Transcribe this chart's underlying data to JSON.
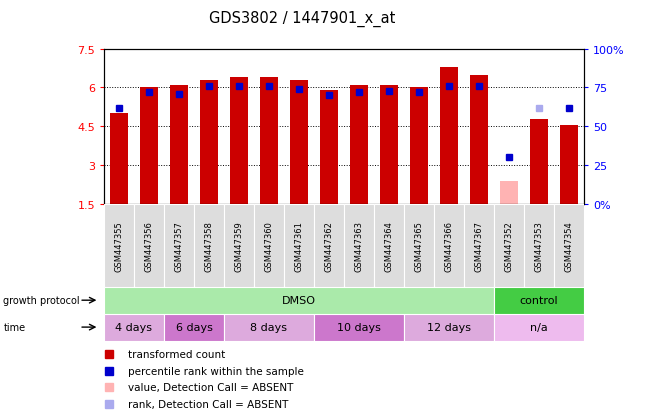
{
  "title": "GDS3802 / 1447901_x_at",
  "samples": [
    "GSM447355",
    "GSM447356",
    "GSM447357",
    "GSM447358",
    "GSM447359",
    "GSM447360",
    "GSM447361",
    "GSM447362",
    "GSM447363",
    "GSM447364",
    "GSM447365",
    "GSM447366",
    "GSM447367",
    "GSM447352",
    "GSM447353",
    "GSM447354"
  ],
  "bar_values": [
    5.0,
    6.0,
    6.1,
    6.3,
    6.4,
    6.4,
    6.3,
    5.9,
    6.1,
    6.1,
    6.0,
    6.8,
    6.5,
    2.4,
    4.8,
    4.55
  ],
  "bar_absent": [
    false,
    false,
    false,
    false,
    false,
    false,
    false,
    false,
    false,
    false,
    false,
    false,
    false,
    true,
    false,
    false
  ],
  "rank_values": [
    62,
    72,
    71,
    76,
    76,
    76,
    74,
    70,
    72,
    73,
    72,
    76,
    76,
    30,
    62,
    62
  ],
  "rank_absent_flag": [
    false,
    false,
    false,
    false,
    false,
    false,
    false,
    false,
    false,
    false,
    false,
    false,
    false,
    false,
    true,
    false
  ],
  "ylim_left": [
    1.5,
    7.5
  ],
  "ylim_right": [
    0,
    100
  ],
  "yticks_left": [
    1.5,
    3.0,
    4.5,
    6.0,
    7.5
  ],
  "yticks_right": [
    0,
    25,
    50,
    75,
    100
  ],
  "ytick_labels_left": [
    "1.5",
    "3",
    "4.5",
    "6",
    "7.5"
  ],
  "ytick_labels_right": [
    "0%",
    "25",
    "50",
    "75",
    "100%"
  ],
  "bar_color_normal": "#cc0000",
  "bar_color_absent": "#ffb3b3",
  "rank_color_normal": "#0000cc",
  "rank_color_absent": "#aaaaee",
  "bar_width": 0.6,
  "protocol_groups": [
    {
      "label": "DMSO",
      "start": 0,
      "end": 13,
      "color": "#aaeaaa"
    },
    {
      "label": "control",
      "start": 13,
      "end": 16,
      "color": "#44cc44"
    }
  ],
  "time_groups": [
    {
      "label": "4 days",
      "start": 0,
      "end": 2,
      "color": "#ddaadd"
    },
    {
      "label": "6 days",
      "start": 2,
      "end": 4,
      "color": "#cc77cc"
    },
    {
      "label": "8 days",
      "start": 4,
      "end": 7,
      "color": "#ddaadd"
    },
    {
      "label": "10 days",
      "start": 7,
      "end": 10,
      "color": "#cc77cc"
    },
    {
      "label": "12 days",
      "start": 10,
      "end": 13,
      "color": "#ddaadd"
    },
    {
      "label": "n/a",
      "start": 13,
      "end": 16,
      "color": "#eebbee"
    }
  ],
  "legend_items": [
    {
      "label": "transformed count",
      "color": "#cc0000"
    },
    {
      "label": "percentile rank within the sample",
      "color": "#0000cc"
    },
    {
      "label": "value, Detection Call = ABSENT",
      "color": "#ffb3b3"
    },
    {
      "label": "rank, Detection Call = ABSENT",
      "color": "#aaaaee"
    }
  ],
  "background_color": "#ffffff"
}
